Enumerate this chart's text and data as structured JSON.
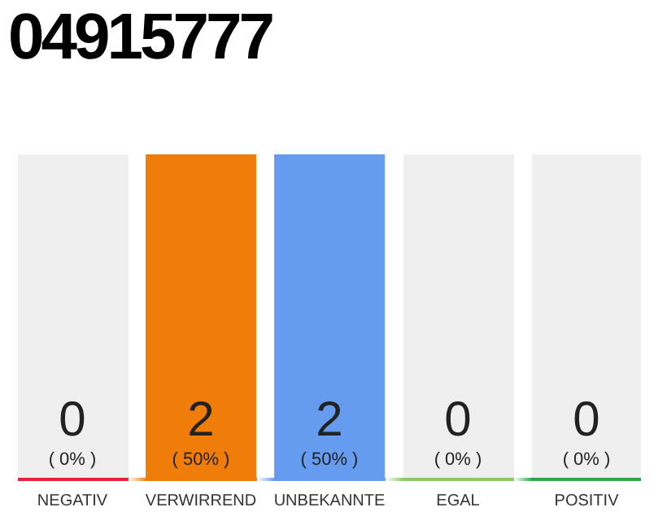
{
  "chart_data": {
    "type": "bar",
    "title": "04915777",
    "categories": [
      "NEGATIV",
      "VERWIRREND",
      "UNBEKANNTE",
      "EGAL",
      "POSITIV"
    ],
    "values": [
      0,
      50,
      50,
      0,
      0
    ],
    "colors": [
      "#e8203a",
      "#f07d0a",
      "#659cef",
      "#8cc866",
      "#2aa84a"
    ],
    "value_labels": [
      "0\n( 0% )",
      "2\n( 50% )",
      "2\n( 50% )",
      "0\n( 0% )",
      "0\n( 0% )"
    ],
    "grid": false,
    "legend": false
  }
}
